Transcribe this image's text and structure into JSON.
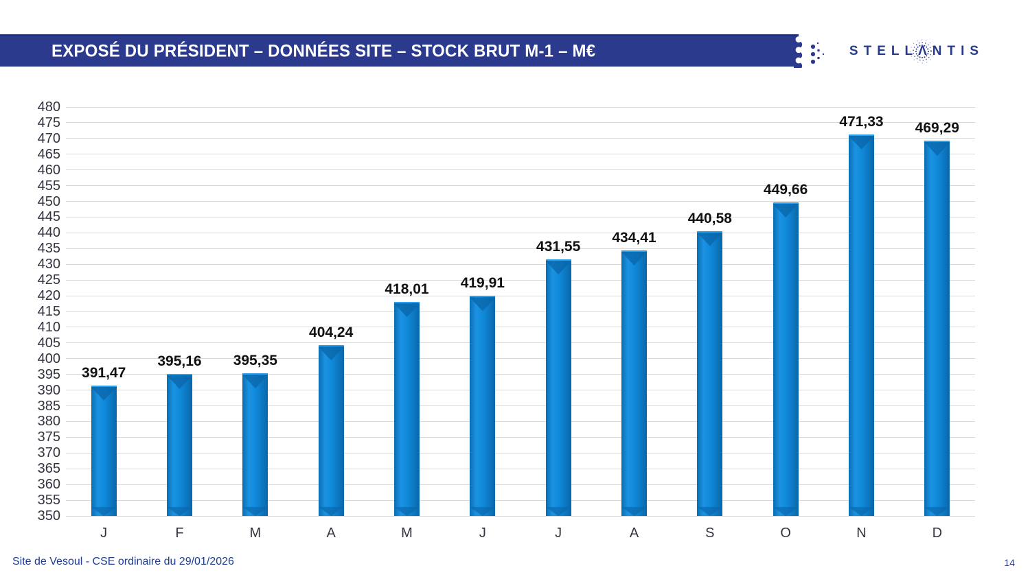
{
  "header": {
    "title": "EXPOSÉ DU PRÉSIDENT – DONNÉES SITE – STOCK BRUT M-1 – M€"
  },
  "logo": {
    "brand": "STELLANTIS",
    "left": "STELL",
    "a_glyph": "Λ",
    "right": "NTIS"
  },
  "footer": {
    "left": "Site de Vesoul - CSE ordinaire du 29/01/2026",
    "page": "14"
  },
  "colors": {
    "titlebar-bg": "#2b3a8c",
    "titlebar-text": "#ffffff",
    "logo-navy": "#26398a",
    "bar-fill": "#0f83d4",
    "bar-shade": "#0a66a9",
    "gridline": "#d9d9d9",
    "axis-text": "#33343f",
    "data-label": "#111111",
    "footer-text": "#1c3c94"
  },
  "chart_data": {
    "type": "bar",
    "title": "",
    "xlabel": "",
    "ylabel": "",
    "categories": [
      "J",
      "F",
      "M",
      "A",
      "M",
      "J",
      "J",
      "A",
      "S",
      "O",
      "N",
      "D"
    ],
    "values": [
      391.47,
      395.16,
      395.35,
      404.24,
      418.01,
      419.91,
      431.55,
      434.41,
      440.58,
      449.66,
      471.33,
      469.29
    ],
    "value_labels": [
      "391,47",
      "395,16",
      "395,35",
      "404,24",
      "418,01",
      "419,91",
      "431,55",
      "434,41",
      "440,58",
      "449,66",
      "471,33",
      "469,29"
    ],
    "ylim": [
      350,
      480
    ],
    "ytick_step": 5,
    "yticks": [
      350,
      355,
      360,
      365,
      370,
      375,
      380,
      385,
      390,
      395,
      400,
      405,
      410,
      415,
      420,
      425,
      430,
      435,
      440,
      445,
      450,
      455,
      460,
      465,
      470,
      475,
      480
    ],
    "grid": true,
    "legend": null
  }
}
